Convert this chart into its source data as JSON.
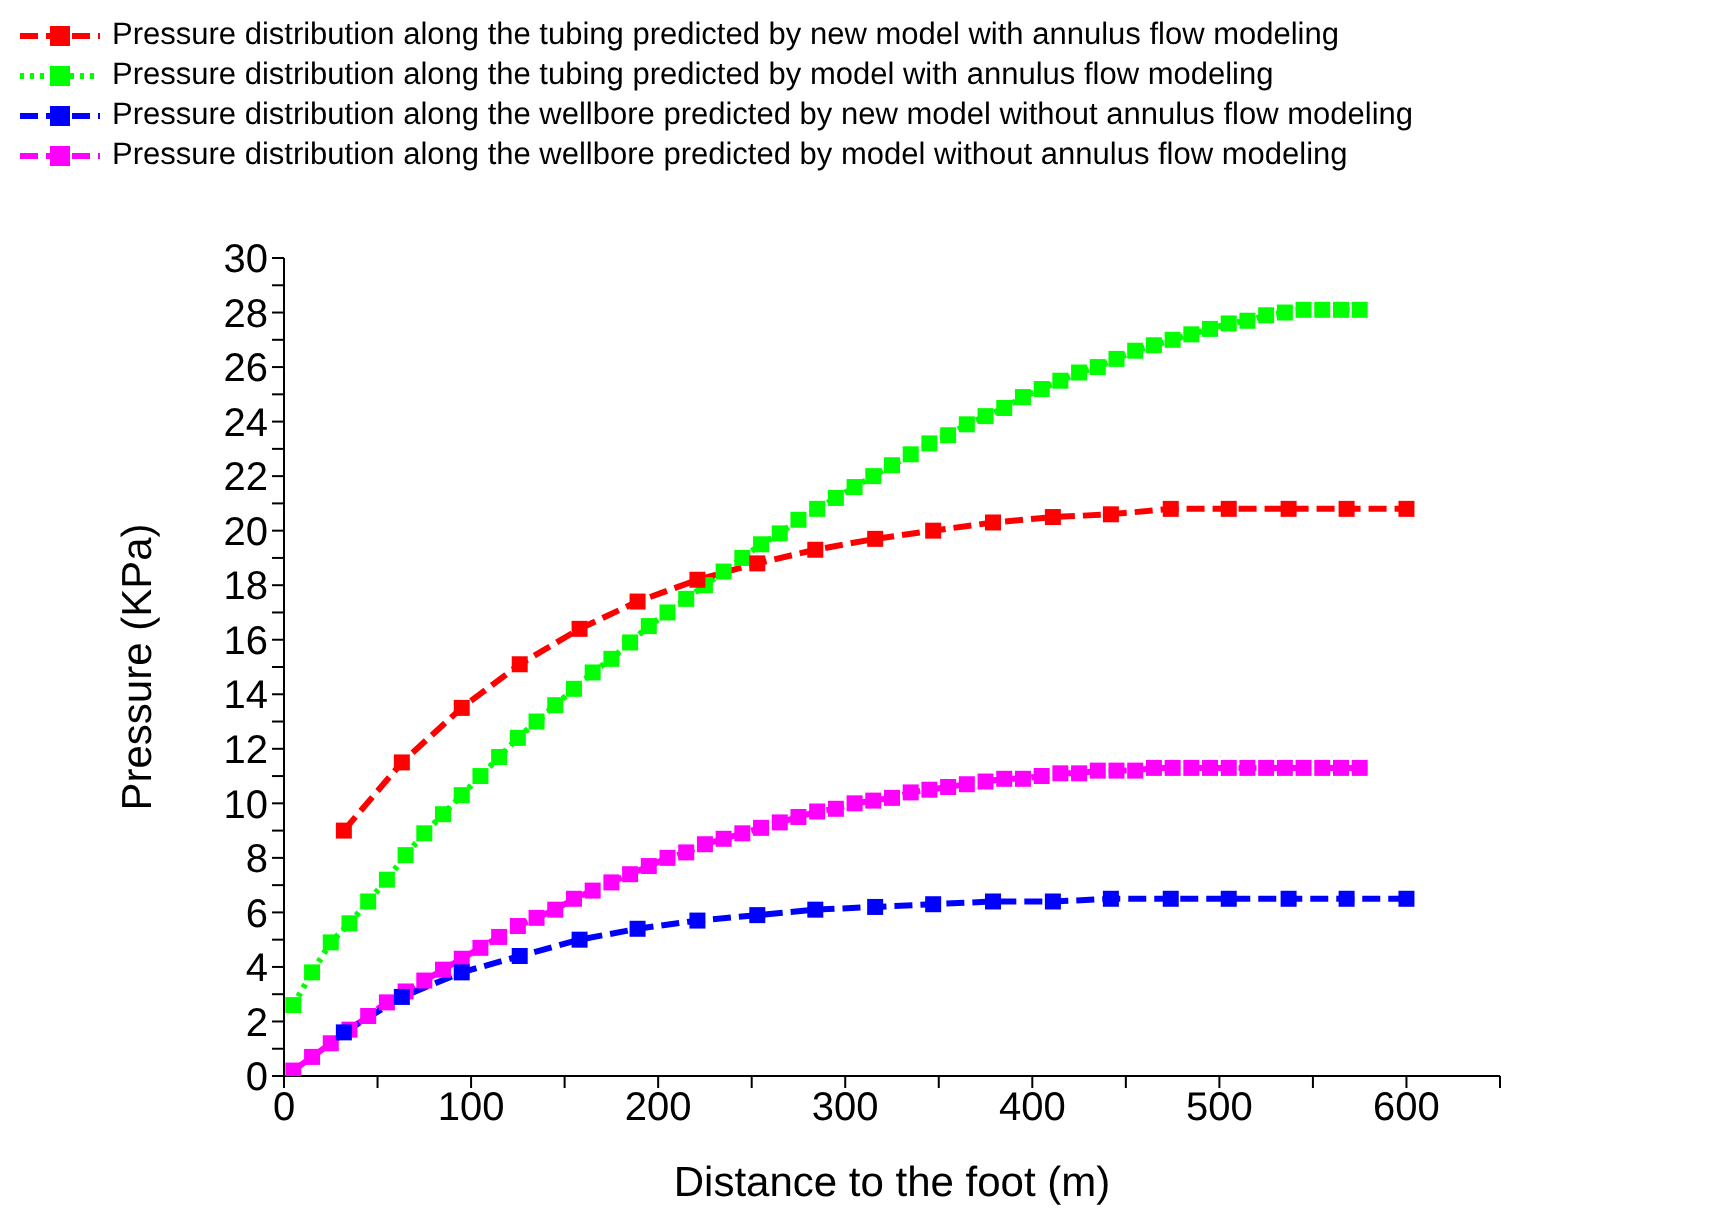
{
  "chart_data": {
    "type": "line",
    "xlabel": "Distance to the foot (m)",
    "ylabel": "Pressure (KPa)",
    "xlim": [
      0,
      650
    ],
    "ylim": [
      0,
      30
    ],
    "xticks": [
      0,
      {
        "value": 50,
        "label": null
      },
      100,
      {
        "value": 150,
        "label": null
      },
      200,
      {
        "value": 250,
        "label": null
      },
      300,
      {
        "value": 350,
        "label": null
      },
      400,
      {
        "value": 450,
        "label": null
      },
      500,
      {
        "value": 550,
        "label": null
      },
      600,
      {
        "value": 650,
        "label": null
      }
    ],
    "yticks": [
      0,
      {
        "value": 1,
        "label": null
      },
      2,
      {
        "value": 3,
        "label": null
      },
      4,
      {
        "value": 5,
        "label": null
      },
      6,
      {
        "value": 7,
        "label": null
      },
      8,
      {
        "value": 9,
        "label": null
      },
      10,
      {
        "value": 11,
        "label": null
      },
      12,
      {
        "value": 13,
        "label": null
      },
      14,
      {
        "value": 15,
        "label": null
      },
      16,
      {
        "value": 17,
        "label": null
      },
      18,
      {
        "value": 19,
        "label": null
      },
      20,
      {
        "value": 21,
        "label": null
      },
      22,
      {
        "value": 23,
        "label": null
      },
      24,
      {
        "value": 25,
        "label": null
      },
      26,
      {
        "value": 27,
        "label": null
      },
      28,
      {
        "value": 29,
        "label": null
      },
      30
    ],
    "grid": false,
    "legend": "top left",
    "marker": "square",
    "series": [
      {
        "name": "Pressure distribution along the tubing predicted by new model with annulus flow modeling",
        "color": "#ff0000",
        "line_style": "dashed",
        "x": [
          32,
          63,
          95,
          126,
          158,
          189,
          221,
          253,
          284,
          316,
          347,
          379,
          411,
          442,
          474,
          505,
          537,
          568,
          600
        ],
        "values": [
          9.0,
          11.5,
          13.5,
          15.1,
          16.4,
          17.4,
          18.2,
          18.8,
          19.3,
          19.7,
          20.0,
          20.3,
          20.5,
          20.6,
          20.8,
          20.8,
          20.8,
          20.8,
          20.8
        ]
      },
      {
        "name": "Pressure distribution along the tubing predicted by model with annulus flow modeling",
        "color": "#00ff00",
        "line_style": "dotted",
        "x": [
          5,
          15,
          25,
          35,
          45,
          55,
          65,
          75,
          85,
          95,
          105,
          115,
          125,
          135,
          145,
          155,
          165,
          175,
          185,
          195,
          205,
          215,
          225,
          235,
          245,
          255,
          265,
          275,
          285,
          295,
          305,
          315,
          325,
          335,
          345,
          355,
          365,
          375,
          385,
          395,
          405,
          415,
          425,
          435,
          445,
          455,
          465,
          475,
          485,
          495,
          505,
          515,
          525,
          535,
          545,
          555,
          565,
          575
        ],
        "values": [
          2.6,
          3.8,
          4.9,
          5.6,
          6.4,
          7.2,
          8.1,
          8.9,
          9.6,
          10.3,
          11.0,
          11.7,
          12.4,
          13.0,
          13.6,
          14.2,
          14.8,
          15.3,
          15.9,
          16.5,
          17.0,
          17.5,
          18.0,
          18.5,
          19.0,
          19.5,
          19.9,
          20.4,
          20.8,
          21.2,
          21.6,
          22.0,
          22.4,
          22.8,
          23.2,
          23.5,
          23.9,
          24.2,
          24.5,
          24.9,
          25.2,
          25.5,
          25.8,
          26.0,
          26.3,
          26.6,
          26.8,
          27.0,
          27.2,
          27.4,
          27.6,
          27.7,
          27.9,
          28.0,
          28.1,
          28.1,
          28.1,
          28.1
        ]
      },
      {
        "name": "Pressure distribution along the wellbore predicted by new model without annulus flow modeling",
        "color": "#0000ff",
        "line_style": "dashed",
        "x": [
          32,
          63,
          95,
          126,
          158,
          189,
          221,
          253,
          284,
          316,
          347,
          379,
          411,
          442,
          474,
          505,
          537,
          568,
          600
        ],
        "values": [
          1.6,
          2.9,
          3.8,
          4.4,
          5.0,
          5.4,
          5.7,
          5.9,
          6.1,
          6.2,
          6.3,
          6.4,
          6.4,
          6.5,
          6.5,
          6.5,
          6.5,
          6.5,
          6.5
        ]
      },
      {
        "name": "Pressure distribution along the wellbore predicted by model without annulus flow modeling",
        "color": "#ff00ff",
        "line_style": "dashed",
        "x": [
          5,
          15,
          25,
          35,
          45,
          55,
          65,
          75,
          85,
          95,
          105,
          115,
          125,
          135,
          145,
          155,
          165,
          175,
          185,
          195,
          205,
          215,
          225,
          235,
          245,
          255,
          265,
          275,
          285,
          295,
          305,
          315,
          325,
          335,
          345,
          355,
          365,
          375,
          385,
          395,
          405,
          415,
          425,
          435,
          445,
          455,
          465,
          475,
          485,
          495,
          505,
          515,
          525,
          535,
          545,
          555,
          565,
          575
        ],
        "values": [
          0.2,
          0.7,
          1.2,
          1.7,
          2.2,
          2.7,
          3.1,
          3.5,
          3.9,
          4.3,
          4.7,
          5.1,
          5.5,
          5.8,
          6.1,
          6.5,
          6.8,
          7.1,
          7.4,
          7.7,
          8.0,
          8.2,
          8.5,
          8.7,
          8.9,
          9.1,
          9.3,
          9.5,
          9.7,
          9.8,
          10.0,
          10.1,
          10.2,
          10.4,
          10.5,
          10.6,
          10.7,
          10.8,
          10.9,
          10.9,
          11.0,
          11.1,
          11.1,
          11.2,
          11.2,
          11.2,
          11.3,
          11.3,
          11.3,
          11.3,
          11.3,
          11.3,
          11.3,
          11.3,
          11.3,
          11.3,
          11.3,
          11.3
        ]
      }
    ]
  }
}
